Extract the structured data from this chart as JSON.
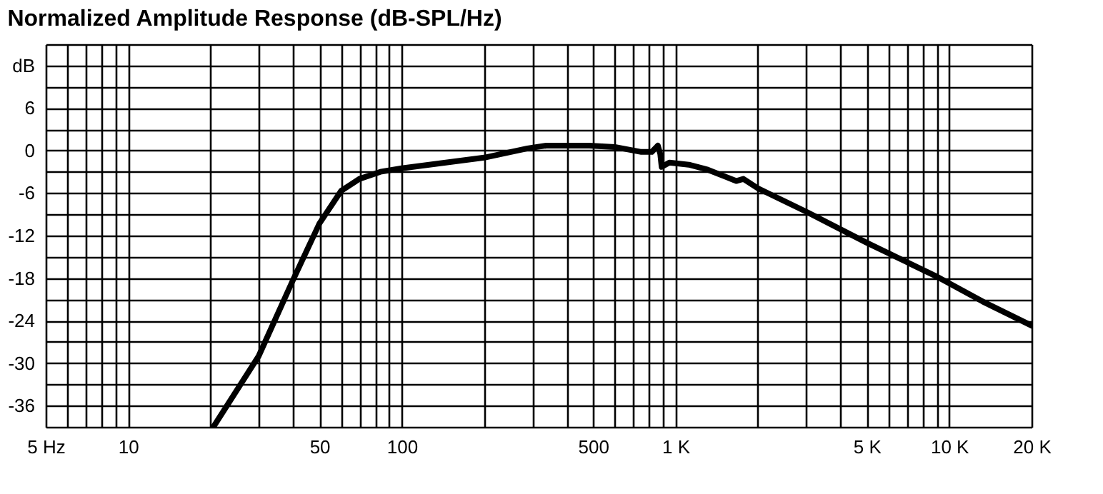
{
  "chart_data": {
    "type": "line",
    "title": "Normalized Amplitude Response (dB-SPL/Hz)",
    "x": [
      20.5,
      30,
      40,
      50,
      60,
      70,
      83.5,
      100,
      200,
      288,
      337,
      484,
      600,
      750,
      819,
      862,
      880,
      890,
      950,
      1118,
      1312,
      1667,
      1770,
      1994,
      3030,
      4990,
      8920,
      13250,
      20000
    ],
    "series": [
      {
        "color": "#000000",
        "values": [
          -39,
          -29,
          -18.3,
          -10.3,
          -5.7,
          -4,
          -3,
          -2.5,
          -1,
          0.3,
          0.7,
          0.7,
          0.5,
          -0.2,
          -0.2,
          0.7,
          -0.5,
          -2.3,
          -1.7,
          -2,
          -2.7,
          -4.3,
          -4,
          -5.3,
          -8.7,
          -13,
          -17.7,
          -21.3,
          -24.7
        ]
      }
    ],
    "log": "x",
    "grid": true,
    "marker": "none",
    "line_style": "solid",
    "xlim": [
      5,
      20000
    ],
    "ylim": [
      -39,
      15
    ],
    "xticks": [
      {
        "value": 5,
        "label": "5 Hz"
      },
      {
        "value": 6,
        "label": null
      },
      {
        "value": 7,
        "label": null
      },
      {
        "value": 8,
        "label": null
      },
      {
        "value": 9,
        "label": null
      },
      10,
      {
        "value": 20,
        "label": null
      },
      {
        "value": 30,
        "label": null
      },
      {
        "value": 40,
        "label": null
      },
      50,
      {
        "value": 60,
        "label": null
      },
      {
        "value": 70,
        "label": null
      },
      {
        "value": 80,
        "label": null
      },
      {
        "value": 90,
        "label": null
      },
      100,
      {
        "value": 200,
        "label": null
      },
      {
        "value": 300,
        "label": null
      },
      {
        "value": 400,
        "label": null
      },
      500,
      {
        "value": 600,
        "label": null
      },
      {
        "value": 700,
        "label": null
      },
      {
        "value": 800,
        "label": null
      },
      {
        "value": 900,
        "label": null
      },
      {
        "value": 1000,
        "label": "1 K"
      },
      {
        "value": 2000,
        "label": null
      },
      {
        "value": 3000,
        "label": null
      },
      {
        "value": 4000,
        "label": null
      },
      {
        "value": 5000,
        "label": "5 K"
      },
      {
        "value": 6000,
        "label": null
      },
      {
        "value": 7000,
        "label": null
      },
      {
        "value": 8000,
        "label": null
      },
      {
        "value": 9000,
        "label": null
      },
      {
        "value": 10000,
        "label": "10 K"
      },
      {
        "value": 20000,
        "label": "20 K"
      }
    ],
    "yticks": [
      {
        "value": -39,
        "label": null
      },
      -36,
      {
        "value": -33,
        "label": null
      },
      -30,
      {
        "value": -27,
        "label": null
      },
      -24,
      {
        "value": -21,
        "label": null
      },
      -18,
      {
        "value": -15,
        "label": null
      },
      -12,
      {
        "value": -9,
        "label": null
      },
      -6,
      {
        "value": -3,
        "label": null
      },
      0,
      {
        "value": 3,
        "label": null
      },
      6,
      {
        "value": 9,
        "label": null
      },
      {
        "value": 12,
        "label": "dB"
      },
      {
        "value": 15,
        "label": null
      }
    ]
  }
}
